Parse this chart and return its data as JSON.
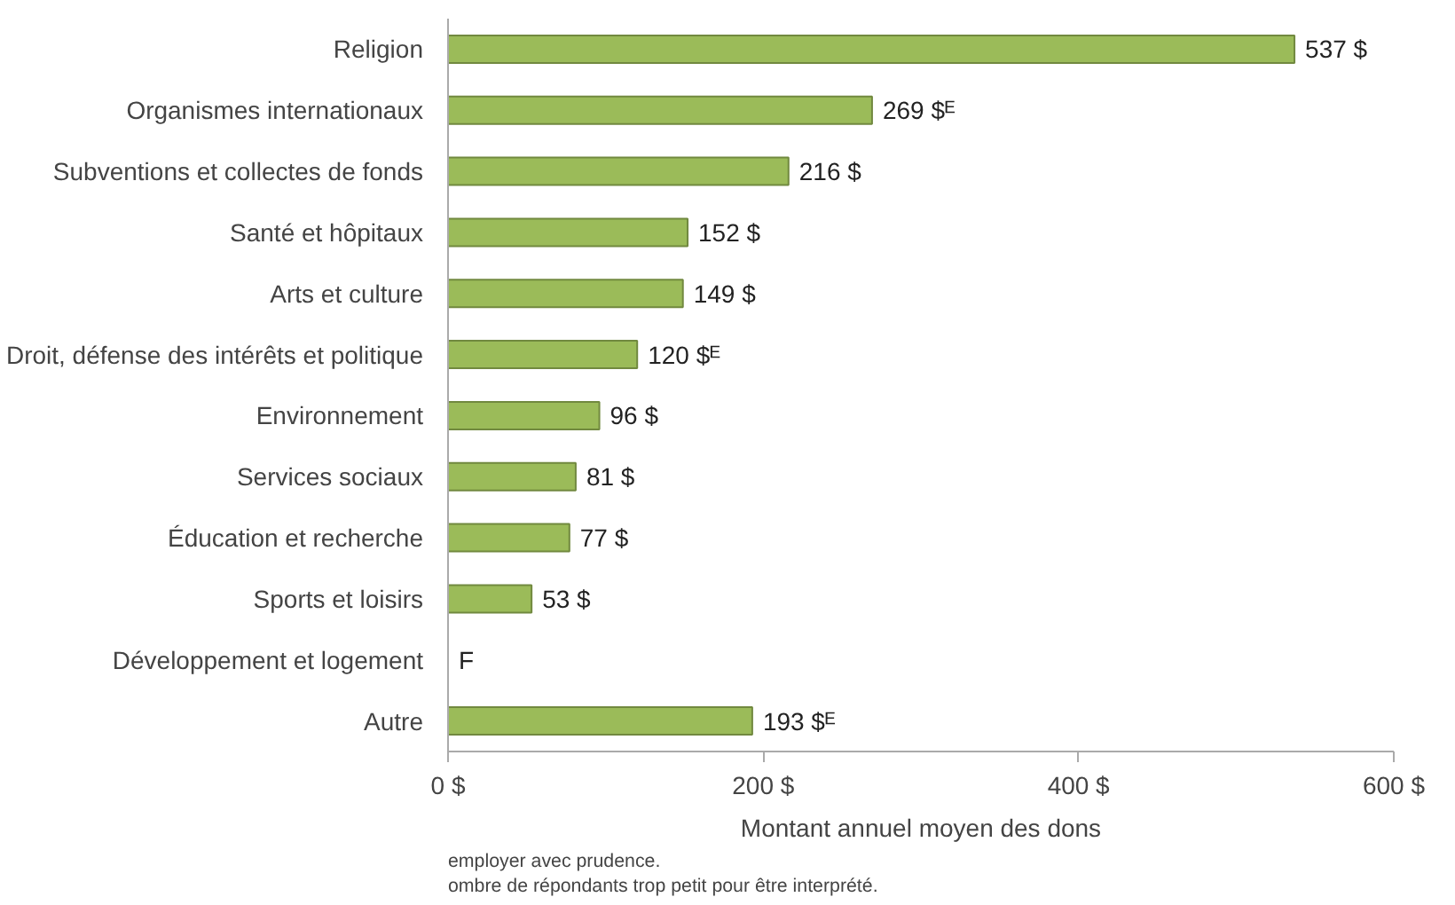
{
  "chart_data": {
    "type": "bar",
    "orientation": "horizontal",
    "categories": [
      "Religion",
      "Organismes internationaux",
      "Subventions et collectes de fonds",
      "Santé et hôpitaux",
      "Arts et culture",
      "Droit, défense des intérêts et politique",
      "Environnement",
      "Services sociaux",
      "Éducation et recherche",
      "Sports et loisirs",
      "Développement et logement",
      "Autre"
    ],
    "values": [
      537,
      269,
      216,
      152,
      149,
      120,
      96,
      81,
      77,
      53,
      null,
      193
    ],
    "value_labels": [
      "537 $",
      "269 $ᴱ",
      "216 $",
      "152 $",
      "149 $",
      "120 $ᴱ",
      "96 $",
      "81 $",
      "77 $",
      "53 $",
      "F",
      "193 $ᴱ"
    ],
    "color": "#9bbb59",
    "xlim": [
      0,
      600
    ],
    "xticks": [
      {
        "value": 0,
        "label": "0 $"
      },
      {
        "value": 200,
        "label": "200 $"
      },
      {
        "value": 400,
        "label": "400 $"
      },
      {
        "value": 600,
        "label": "600 $"
      }
    ],
    "xlabel": "Montant annuel moyen des dons",
    "annotations": [
      "employer avec prudence.",
      "ombre de répondants trop petit pour être interprété."
    ],
    "grid": false
  }
}
